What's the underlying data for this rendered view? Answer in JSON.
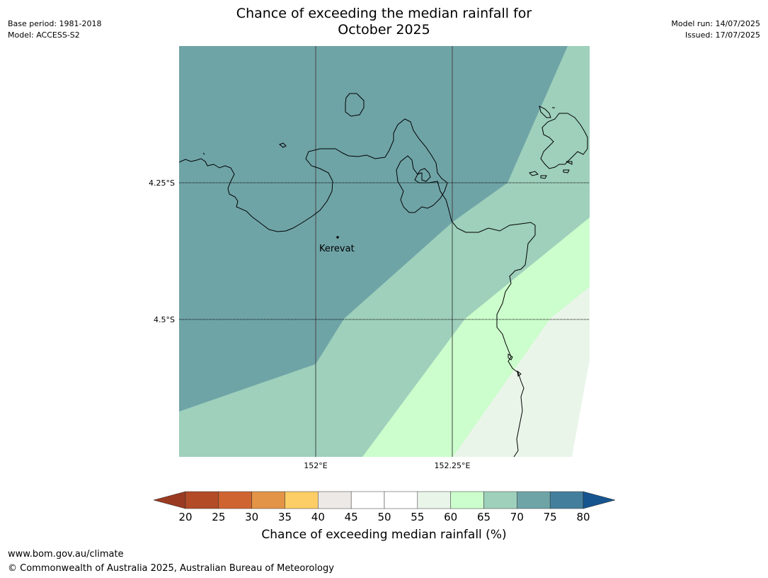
{
  "header": {
    "title_line1": "Chance of exceeding the median rainfall for",
    "title_line2": "October 2025",
    "base_period": "Base period: 1981-2018",
    "model": "Model: ACCESS-S2",
    "model_run": "Model run: 14/07/2025",
    "issued": "Issued: 17/07/2025"
  },
  "map": {
    "lat_ticks": [
      {
        "value": -4.25,
        "label": "4.25°S"
      },
      {
        "value": -4.5,
        "label": "4.5°S"
      }
    ],
    "lon_ticks": [
      {
        "value": 152.0,
        "label": "152°E"
      },
      {
        "value": 152.25,
        "label": "152.25°E"
      }
    ],
    "places": [
      {
        "name": "Kerevat",
        "label": "Kerevat"
      }
    ],
    "colors": {
      "band_70_75": "#6fa4a7",
      "band_65_70": "#9ed0bb",
      "band_60_65": "#ccfdcc",
      "band_55_60": "#eaf5ea",
      "band_50_55": "#ffffff",
      "coastline": "#000000",
      "meridian": "#444444"
    }
  },
  "colorbar": {
    "title": "Chance of exceeding median rainfall (%)",
    "ticks": [
      "20",
      "25",
      "30",
      "35",
      "40",
      "45",
      "50",
      "55",
      "60",
      "65",
      "70",
      "75",
      "80"
    ],
    "under_color": "#9b3a22",
    "over_color": "#16548f",
    "colors": [
      "#b24b26",
      "#cf6431",
      "#e39446",
      "#fece66",
      "#ede9e6",
      "#ffffff",
      "#ffffff",
      "#eaf5ea",
      "#ccfdcc",
      "#9ed0bb",
      "#6fa4a7",
      "#437f9c"
    ]
  },
  "footer": {
    "url": "www.bom.gov.au/climate",
    "copyright": "© Commonwealth of Australia 2025, Australian Bureau of Meteorology"
  }
}
